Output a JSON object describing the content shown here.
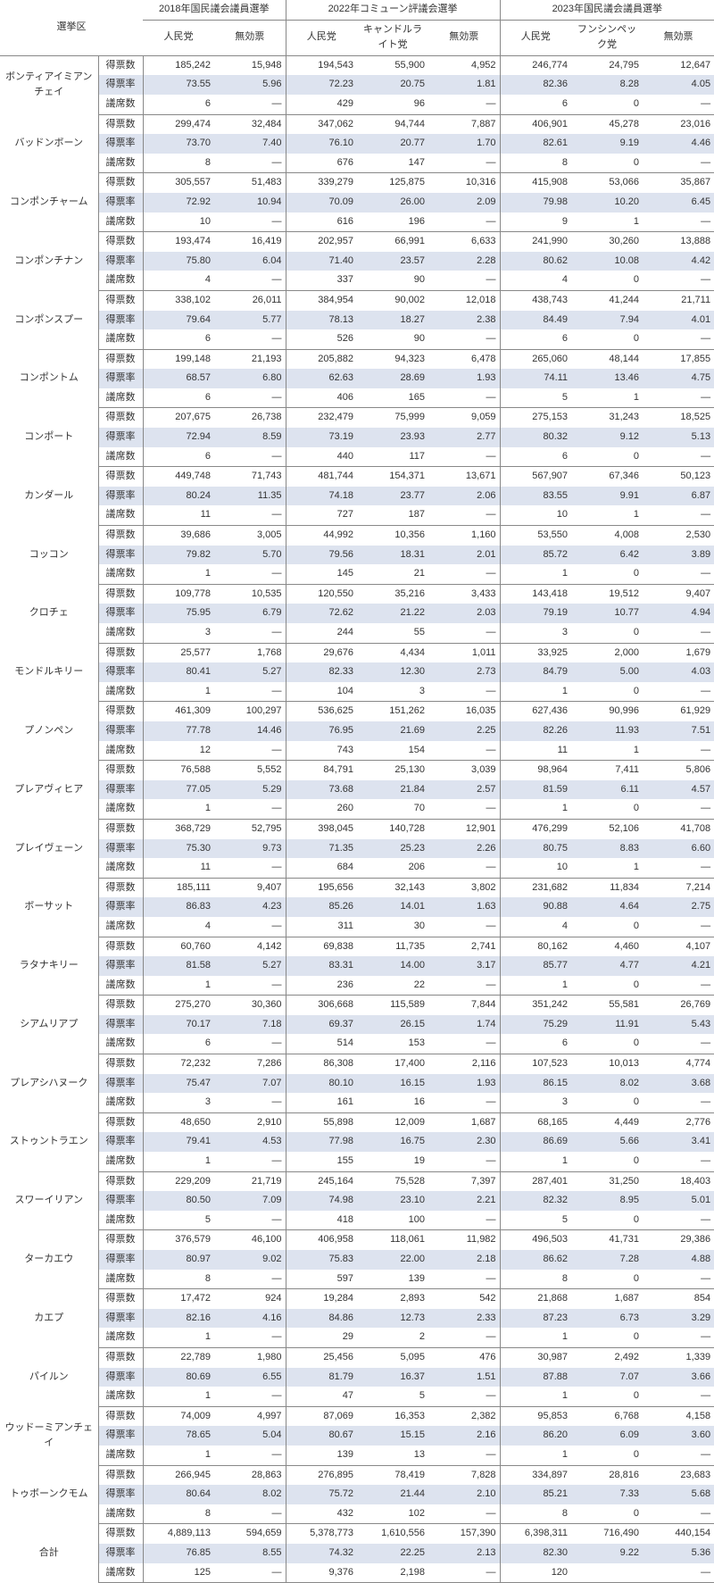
{
  "header": {
    "region_label": "選挙区",
    "groups": [
      {
        "title": "2018年国民議会議員選挙",
        "cols": [
          "人民党",
          "無効票"
        ]
      },
      {
        "title": "2022年コミューン評議会選挙",
        "cols": [
          "人民党",
          "キャンドルライト党",
          "無効票"
        ]
      },
      {
        "title": "2023年国民議会議員選挙",
        "cols": [
          "人民党",
          "フンシンペック党",
          "無効票"
        ]
      }
    ],
    "metrics": [
      "得票数",
      "得票率",
      "議席数"
    ]
  },
  "dash": "—",
  "colors": {
    "row_highlight": "#dde3ef",
    "border": "#888888",
    "text": "#333333",
    "background": "#ffffff"
  },
  "typography": {
    "font_family": "Meiryo / Hiragino Sans",
    "font_size_pt": 8,
    "line_height": 1.6
  },
  "regions": [
    {
      "name": "ボンティアイミアンチェイ",
      "votes": [
        "185,242",
        "15,948",
        "194,543",
        "55,900",
        "4,952",
        "246,774",
        "24,795",
        "12,647"
      ],
      "rates": [
        "73.55",
        "5.96",
        "72.23",
        "20.75",
        "1.81",
        "82.36",
        "8.28",
        "4.05"
      ],
      "seats": [
        "6",
        "—",
        "429",
        "96",
        "—",
        "6",
        "0",
        "—"
      ]
    },
    {
      "name": "バッドンボーン",
      "votes": [
        "299,474",
        "32,484",
        "347,062",
        "94,744",
        "7,887",
        "406,901",
        "45,278",
        "23,016"
      ],
      "rates": [
        "73.70",
        "7.40",
        "76.10",
        "20.77",
        "1.70",
        "82.61",
        "9.19",
        "4.46"
      ],
      "seats": [
        "8",
        "—",
        "676",
        "147",
        "—",
        "8",
        "0",
        "—"
      ]
    },
    {
      "name": "コンポンチャーム",
      "votes": [
        "305,557",
        "51,483",
        "339,279",
        "125,875",
        "10,316",
        "415,908",
        "53,066",
        "35,867"
      ],
      "rates": [
        "72.92",
        "10.94",
        "70.09",
        "26.00",
        "2.09",
        "79.98",
        "10.20",
        "6.45"
      ],
      "seats": [
        "10",
        "—",
        "616",
        "196",
        "—",
        "9",
        "1",
        "—"
      ]
    },
    {
      "name": "コンポンチナン",
      "votes": [
        "193,474",
        "16,419",
        "202,957",
        "66,991",
        "6,633",
        "241,990",
        "30,260",
        "13,888"
      ],
      "rates": [
        "75.80",
        "6.04",
        "71.40",
        "23.57",
        "2.28",
        "80.62",
        "10.08",
        "4.42"
      ],
      "seats": [
        "4",
        "—",
        "337",
        "90",
        "—",
        "4",
        "0",
        "—"
      ]
    },
    {
      "name": "コンポンスプー",
      "votes": [
        "338,102",
        "26,011",
        "384,954",
        "90,002",
        "12,018",
        "438,743",
        "41,244",
        "21,711"
      ],
      "rates": [
        "79.64",
        "5.77",
        "78.13",
        "18.27",
        "2.38",
        "84.49",
        "7.94",
        "4.01"
      ],
      "seats": [
        "6",
        "—",
        "526",
        "90",
        "—",
        "6",
        "0",
        "—"
      ]
    },
    {
      "name": "コンポントム",
      "votes": [
        "199,148",
        "21,193",
        "205,882",
        "94,323",
        "6,478",
        "265,060",
        "48,144",
        "17,855"
      ],
      "rates": [
        "68.57",
        "6.80",
        "62.63",
        "28.69",
        "1.93",
        "74.11",
        "13.46",
        "4.75"
      ],
      "seats": [
        "6",
        "—",
        "406",
        "165",
        "—",
        "5",
        "1",
        "—"
      ]
    },
    {
      "name": "コンポート",
      "votes": [
        "207,675",
        "26,738",
        "232,479",
        "75,999",
        "9,059",
        "275,153",
        "31,243",
        "18,525"
      ],
      "rates": [
        "72.94",
        "8.59",
        "73.19",
        "23.93",
        "2.77",
        "80.32",
        "9.12",
        "5.13"
      ],
      "seats": [
        "6",
        "—",
        "440",
        "117",
        "—",
        "6",
        "0",
        "—"
      ]
    },
    {
      "name": "カンダール",
      "votes": [
        "449,748",
        "71,743",
        "481,744",
        "154,371",
        "13,671",
        "567,907",
        "67,346",
        "50,123"
      ],
      "rates": [
        "80.24",
        "11.35",
        "74.18",
        "23.77",
        "2.06",
        "83.55",
        "9.91",
        "6.87"
      ],
      "seats": [
        "11",
        "—",
        "727",
        "187",
        "—",
        "10",
        "1",
        "—"
      ]
    },
    {
      "name": "コッコン",
      "votes": [
        "39,686",
        "3,005",
        "44,992",
        "10,356",
        "1,160",
        "53,550",
        "4,008",
        "2,530"
      ],
      "rates": [
        "79.82",
        "5.70",
        "79.56",
        "18.31",
        "2.01",
        "85.72",
        "6.42",
        "3.89"
      ],
      "seats": [
        "1",
        "—",
        "145",
        "21",
        "—",
        "1",
        "0",
        "—"
      ]
    },
    {
      "name": "クロチェ",
      "votes": [
        "109,778",
        "10,535",
        "120,550",
        "35,216",
        "3,433",
        "143,418",
        "19,512",
        "9,407"
      ],
      "rates": [
        "75.95",
        "6.79",
        "72.62",
        "21.22",
        "2.03",
        "79.19",
        "10.77",
        "4.94"
      ],
      "seats": [
        "3",
        "—",
        "244",
        "55",
        "—",
        "3",
        "0",
        "—"
      ]
    },
    {
      "name": "モンドルキリー",
      "votes": [
        "25,577",
        "1,768",
        "29,676",
        "4,434",
        "1,011",
        "33,925",
        "2,000",
        "1,679"
      ],
      "rates": [
        "80.41",
        "5.27",
        "82.33",
        "12.30",
        "2.73",
        "84.79",
        "5.00",
        "4.03"
      ],
      "seats": [
        "1",
        "—",
        "104",
        "3",
        "—",
        "1",
        "0",
        "—"
      ]
    },
    {
      "name": "プノンペン",
      "votes": [
        "461,309",
        "100,297",
        "536,625",
        "151,262",
        "16,035",
        "627,436",
        "90,996",
        "61,929"
      ],
      "rates": [
        "77.78",
        "14.46",
        "76.95",
        "21.69",
        "2.25",
        "82.26",
        "11.93",
        "7.51"
      ],
      "seats": [
        "12",
        "—",
        "743",
        "154",
        "—",
        "11",
        "1",
        "—"
      ]
    },
    {
      "name": "プレアヴィヒア",
      "votes": [
        "76,588",
        "5,552",
        "84,791",
        "25,130",
        "3,039",
        "98,964",
        "7,411",
        "5,806"
      ],
      "rates": [
        "77.05",
        "5.29",
        "73.68",
        "21.84",
        "2.57",
        "81.59",
        "6.11",
        "4.57"
      ],
      "seats": [
        "1",
        "—",
        "260",
        "70",
        "—",
        "1",
        "0",
        "—"
      ]
    },
    {
      "name": "プレイヴェーン",
      "votes": [
        "368,729",
        "52,795",
        "398,045",
        "140,728",
        "12,901",
        "476,299",
        "52,106",
        "41,708"
      ],
      "rates": [
        "75.30",
        "9.73",
        "71.35",
        "25.23",
        "2.26",
        "80.75",
        "8.83",
        "6.60"
      ],
      "seats": [
        "11",
        "—",
        "684",
        "206",
        "—",
        "10",
        "1",
        "—"
      ]
    },
    {
      "name": "ボーサット",
      "votes": [
        "185,111",
        "9,407",
        "195,656",
        "32,143",
        "3,802",
        "231,682",
        "11,834",
        "7,214"
      ],
      "rates": [
        "86.83",
        "4.23",
        "85.26",
        "14.01",
        "1.63",
        "90.88",
        "4.64",
        "2.75"
      ],
      "seats": [
        "4",
        "—",
        "311",
        "30",
        "—",
        "4",
        "0",
        "—"
      ]
    },
    {
      "name": "ラタナキリー",
      "votes": [
        "60,760",
        "4,142",
        "69,838",
        "11,735",
        "2,741",
        "80,162",
        "4,460",
        "4,107"
      ],
      "rates": [
        "81.58",
        "5.27",
        "83.31",
        "14.00",
        "3.17",
        "85.77",
        "4.77",
        "4.21"
      ],
      "seats": [
        "1",
        "—",
        "236",
        "22",
        "—",
        "1",
        "0",
        "—"
      ]
    },
    {
      "name": "シアムリアプ",
      "votes": [
        "275,270",
        "30,360",
        "306,668",
        "115,589",
        "7,844",
        "351,242",
        "55,581",
        "26,769"
      ],
      "rates": [
        "70.17",
        "7.18",
        "69.37",
        "26.15",
        "1.74",
        "75.29",
        "11.91",
        "5.43"
      ],
      "seats": [
        "6",
        "—",
        "514",
        "153",
        "—",
        "6",
        "0",
        "—"
      ]
    },
    {
      "name": "プレアシハヌーク",
      "votes": [
        "72,232",
        "7,286",
        "86,308",
        "17,400",
        "2,116",
        "107,523",
        "10,013",
        "4,774"
      ],
      "rates": [
        "75.47",
        "7.07",
        "80.10",
        "16.15",
        "1.93",
        "86.15",
        "8.02",
        "3.68"
      ],
      "seats": [
        "3",
        "—",
        "161",
        "16",
        "—",
        "3",
        "0",
        "—"
      ]
    },
    {
      "name": "ストゥントラエン",
      "votes": [
        "48,650",
        "2,910",
        "55,898",
        "12,009",
        "1,687",
        "68,165",
        "4,449",
        "2,776"
      ],
      "rates": [
        "79.41",
        "4.53",
        "77.98",
        "16.75",
        "2.30",
        "86.69",
        "5.66",
        "3.41"
      ],
      "seats": [
        "1",
        "—",
        "155",
        "19",
        "—",
        "1",
        "0",
        "—"
      ]
    },
    {
      "name": "スワーイリアン",
      "votes": [
        "229,209",
        "21,719",
        "245,164",
        "75,528",
        "7,397",
        "287,401",
        "31,250",
        "18,403"
      ],
      "rates": [
        "80.50",
        "7.09",
        "74.98",
        "23.10",
        "2.21",
        "82.32",
        "8.95",
        "5.01"
      ],
      "seats": [
        "5",
        "—",
        "418",
        "100",
        "—",
        "5",
        "0",
        "—"
      ]
    },
    {
      "name": "ターカエウ",
      "votes": [
        "376,579",
        "46,100",
        "406,958",
        "118,061",
        "11,982",
        "496,503",
        "41,731",
        "29,386"
      ],
      "rates": [
        "80.97",
        "9.02",
        "75.83",
        "22.00",
        "2.18",
        "86.62",
        "7.28",
        "4.88"
      ],
      "seats": [
        "8",
        "—",
        "597",
        "139",
        "—",
        "8",
        "0",
        "—"
      ]
    },
    {
      "name": "カエプ",
      "votes": [
        "17,472",
        "924",
        "19,284",
        "2,893",
        "542",
        "21,868",
        "1,687",
        "854"
      ],
      "rates": [
        "82.16",
        "4.16",
        "84.86",
        "12.73",
        "2.33",
        "87.23",
        "6.73",
        "3.29"
      ],
      "seats": [
        "1",
        "—",
        "29",
        "2",
        "—",
        "1",
        "0",
        "—"
      ]
    },
    {
      "name": "パイルン",
      "votes": [
        "22,789",
        "1,980",
        "25,456",
        "5,095",
        "476",
        "30,987",
        "2,492",
        "1,339"
      ],
      "rates": [
        "80.69",
        "6.55",
        "81.79",
        "16.37",
        "1.51",
        "87.88",
        "7.07",
        "3.66"
      ],
      "seats": [
        "1",
        "—",
        "47",
        "5",
        "—",
        "1",
        "0",
        "—"
      ]
    },
    {
      "name": "ウッドーミアンチェイ",
      "votes": [
        "74,009",
        "4,997",
        "87,069",
        "16,353",
        "2,382",
        "95,853",
        "6,768",
        "4,158"
      ],
      "rates": [
        "78.65",
        "5.04",
        "80.67",
        "15.15",
        "2.16",
        "86.20",
        "6.09",
        "3.60"
      ],
      "seats": [
        "1",
        "—",
        "139",
        "13",
        "—",
        "1",
        "0",
        "—"
      ]
    },
    {
      "name": "トゥボーンクモム",
      "votes": [
        "266,945",
        "28,863",
        "276,895",
        "78,419",
        "7,828",
        "334,897",
        "28,816",
        "23,683"
      ],
      "rates": [
        "80.64",
        "8.02",
        "75.72",
        "21.44",
        "2.10",
        "85.21",
        "7.33",
        "5.68"
      ],
      "seats": [
        "8",
        "—",
        "432",
        "102",
        "—",
        "8",
        "0",
        "—"
      ]
    },
    {
      "name": "合計",
      "votes": [
        "4,889,113",
        "594,659",
        "5,378,773",
        "1,610,556",
        "157,390",
        "6,398,311",
        "716,490",
        "440,154"
      ],
      "rates": [
        "76.85",
        "8.55",
        "74.32",
        "22.25",
        "2.13",
        "82.30",
        "9.22",
        "5.36"
      ],
      "seats": [
        "125",
        "—",
        "9,376",
        "2,198",
        "—",
        "120",
        "",
        "—"
      ]
    }
  ]
}
